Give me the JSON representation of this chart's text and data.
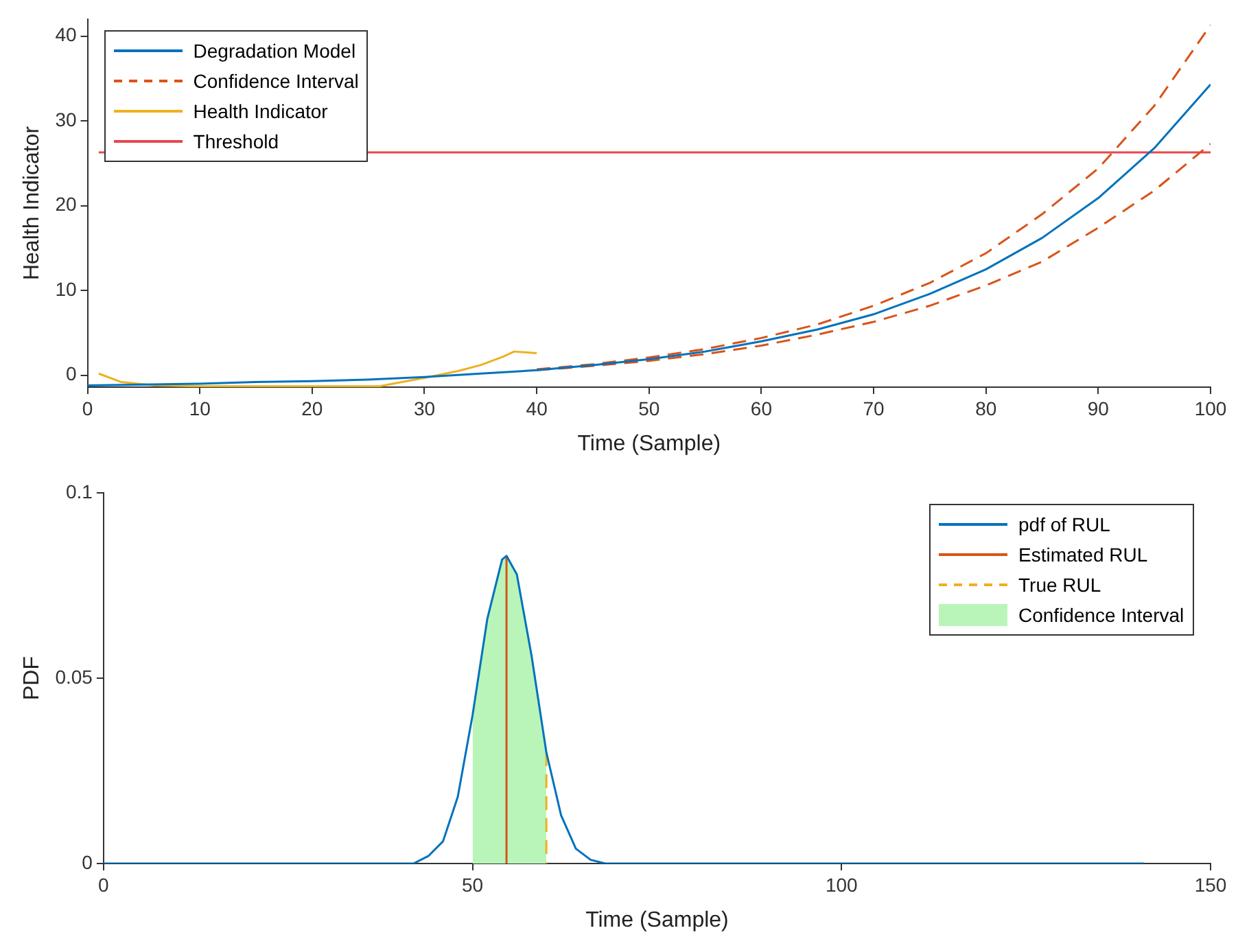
{
  "chart_data": [
    {
      "type": "line",
      "xlabel": "Time (Sample)",
      "ylabel": "Health Indicator",
      "xlim": [
        0,
        100
      ],
      "ylim": [
        -1.4,
        42
      ],
      "xticks": [
        0,
        10,
        20,
        30,
        40,
        50,
        60,
        70,
        80,
        90,
        100
      ],
      "yticks": [
        0,
        10,
        20,
        30,
        40
      ],
      "legend": "top left",
      "series": [
        {
          "name": "Degradation Model",
          "color": "#0072bd",
          "x": [
            0,
            5,
            10,
            15,
            20,
            25,
            30,
            35,
            40,
            45,
            50,
            55,
            60,
            65,
            70,
            75,
            80,
            85,
            90,
            95,
            100
          ],
          "values": [
            -1.2,
            -1.1,
            -1,
            -0.8,
            -0.7,
            -0.5,
            -0.2,
            0.2,
            0.6,
            1.2,
            1.9,
            2.8,
            4,
            5.4,
            7.2,
            9.6,
            12.5,
            16.2,
            20.9,
            26.8,
            34.3
          ]
        },
        {
          "name": "Confidence Interval",
          "color": "#d95319",
          "line_style": "dashed",
          "x": [
            40,
            45,
            50,
            55,
            60,
            65,
            70,
            75,
            80,
            85,
            90,
            95,
            100
          ],
          "values": [
            0.7,
            1.3,
            2.1,
            3.1,
            4.4,
            6,
            8.2,
            10.9,
            14.4,
            19,
            24.4,
            31.8,
            41.3
          ]
        },
        {
          "color": "#d95319",
          "line_style": "dashed",
          "x": [
            40,
            45,
            50,
            55,
            60,
            65,
            70,
            75,
            80,
            85,
            90,
            95,
            100
          ],
          "values": [
            0.6,
            1.1,
            1.7,
            2.5,
            3.5,
            4.8,
            6.3,
            8.2,
            10.6,
            13.4,
            17.4,
            21.8,
            27.3
          ]
        },
        {
          "name": "Health Indicator",
          "color": "#edb120",
          "x": [
            1,
            3,
            6,
            10,
            15,
            20,
            26,
            28,
            30,
            33,
            35,
            37,
            38,
            39,
            40
          ],
          "values": [
            0.2,
            -0.8,
            -1.2,
            -1.3,
            -1.3,
            -1.3,
            -1.3,
            -0.8,
            -0.3,
            0.5,
            1.2,
            2.2,
            2.8,
            2.7,
            2.6
          ]
        },
        {
          "name": "Threshold",
          "color": "#e8474f",
          "x": [
            1,
            100
          ],
          "values": [
            26.3,
            26.3
          ]
        }
      ]
    },
    {
      "type": "line",
      "xlabel": "Time (Sample)",
      "ylabel": "PDF",
      "xlim": [
        0,
        150
      ],
      "ylim": [
        0,
        0.1
      ],
      "xticks": [
        0,
        50,
        100,
        150
      ],
      "yticks": [
        0,
        0.05,
        0.1
      ],
      "legend": "top right",
      "series": [
        {
          "name": "pdf of RUL",
          "color": "#0072bd",
          "x": [
            0,
            42,
            44,
            46,
            48,
            50,
            52,
            54,
            54.6,
            56,
            58,
            60,
            62,
            64,
            66,
            68,
            141
          ],
          "values": [
            0,
            0,
            0.002,
            0.006,
            0.018,
            0.04,
            0.066,
            0.082,
            0.083,
            0.078,
            0.056,
            0.03,
            0.013,
            0.004,
            0.001,
            0,
            0
          ]
        },
        {
          "name": "Estimated RUL",
          "color": "#d95319",
          "x": [
            54.6,
            54.6
          ],
          "values": [
            0,
            0.083
          ]
        },
        {
          "name": "True RUL",
          "color": "#edb120",
          "line_style": "dashed",
          "x": [
            60,
            60
          ],
          "values": [
            0.03,
            0
          ]
        },
        {
          "name": "Confidence Interval",
          "type": "area",
          "color": "#b9f5b9",
          "x": [
            50,
            52,
            54,
            54.6,
            56,
            58,
            60
          ],
          "values": [
            0.04,
            0.066,
            0.082,
            0.083,
            0.078,
            0.056,
            0.03
          ]
        }
      ]
    }
  ]
}
